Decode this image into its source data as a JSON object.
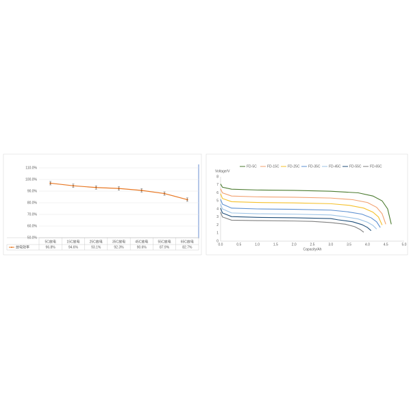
{
  "chart_data": [
    {
      "type": "line",
      "categories": [
        "5C放电",
        "15C放电",
        "25C放电",
        "35C放电",
        "45C放电",
        "55C放电",
        "65C放电"
      ],
      "series": [
        {
          "name": "放电效率",
          "color": "#e87722",
          "values": [
            96.8,
            94.6,
            93.1,
            92.3,
            90.6,
            87.9,
            82.7
          ],
          "value_labels": [
            "96.8%",
            "94.6%",
            "93.1%",
            "92.3%",
            "90.6%",
            "87.9%",
            "82.7%"
          ],
          "errors": [
            1.5,
            1.5,
            1.5,
            1.5,
            1.5,
            1.5,
            1.5
          ]
        }
      ],
      "ylim": [
        50,
        110
      ],
      "yticks": [
        {
          "value": 50,
          "label": "50.0%"
        },
        {
          "value": 60,
          "label": "60.0%"
        },
        {
          "value": 70,
          "label": "70.0%"
        },
        {
          "value": 80,
          "label": "80.0%"
        },
        {
          "value": 90,
          "label": "90.0%"
        },
        {
          "value": 100,
          "label": "100.0%"
        },
        {
          "value": 110,
          "label": "110.0%"
        }
      ],
      "grid": true
    },
    {
      "type": "line",
      "x_label": "Capacity/Ah",
      "y_label": "Voltage/V",
      "series": [
        {
          "name": "FD-5C",
          "color": "#4a7a2e",
          "x": [
            0,
            0.05,
            0.3,
            1,
            2,
            3,
            3.75,
            4.15,
            4.4,
            4.55,
            4.65
          ],
          "values": [
            7.1,
            6.7,
            6.45,
            6.35,
            6.3,
            6.2,
            6.0,
            5.6,
            5.0,
            4.0,
            2.1
          ]
        },
        {
          "name": "FD-15C",
          "color": "#f2a06e",
          "x": [
            0,
            0.05,
            0.3,
            1,
            2,
            3,
            3.6,
            4.0,
            4.25,
            4.4,
            4.5
          ],
          "values": [
            6.5,
            6.0,
            5.6,
            5.5,
            5.45,
            5.35,
            5.15,
            4.8,
            4.2,
            3.4,
            2.1
          ]
        },
        {
          "name": "FD-25C",
          "color": "#f5c02a",
          "x": [
            0,
            0.05,
            0.3,
            1,
            2,
            3,
            3.5,
            3.9,
            4.15,
            4.3,
            4.4
          ],
          "values": [
            5.9,
            5.3,
            4.9,
            4.8,
            4.75,
            4.65,
            4.45,
            4.1,
            3.6,
            3.0,
            2.0
          ]
        },
        {
          "name": "FD-35C",
          "color": "#5b8fd0",
          "x": [
            0,
            0.05,
            0.3,
            1,
            2,
            3,
            3.45,
            3.85,
            4.1,
            4.25,
            4.35
          ],
          "values": [
            5.2,
            4.6,
            4.1,
            4.0,
            3.95,
            3.85,
            3.65,
            3.35,
            2.9,
            2.4,
            1.7
          ]
        },
        {
          "name": "FD-45C",
          "color": "#9cc3e6",
          "x": [
            0,
            0.05,
            0.3,
            1,
            2,
            3,
            3.35,
            3.75,
            4.0,
            4.15,
            4.25
          ],
          "values": [
            4.6,
            4.0,
            3.5,
            3.4,
            3.35,
            3.25,
            3.05,
            2.75,
            2.35,
            1.95,
            1.5
          ]
        },
        {
          "name": "FD-55C",
          "color": "#1f4e79",
          "x": [
            0,
            0.05,
            0.3,
            1,
            2,
            3,
            3.2,
            3.6,
            3.85,
            4.0,
            4.1
          ],
          "values": [
            4.1,
            3.5,
            3.05,
            2.95,
            2.9,
            2.8,
            2.65,
            2.4,
            2.05,
            1.7,
            1.3
          ]
        },
        {
          "name": "FD-65C",
          "color": "#7f7f7f",
          "x": [
            0,
            0.05,
            0.3,
            1,
            2,
            2.5,
            3.0,
            3.4,
            3.65,
            3.8,
            3.9
          ],
          "values": [
            3.6,
            3.0,
            2.6,
            2.55,
            2.5,
            2.45,
            2.3,
            2.1,
            1.8,
            1.45,
            1.1
          ]
        }
      ],
      "xlim": [
        0,
        5
      ],
      "xticks": [
        {
          "value": 0,
          "label": "0.0"
        },
        0.5,
        {
          "value": 1,
          "label": "1.0"
        },
        1.5,
        {
          "value": 2,
          "label": "2.0"
        },
        2.5,
        {
          "value": 3,
          "label": "3.0"
        },
        3.5,
        {
          "value": 4,
          "label": "4.0"
        },
        4.5,
        {
          "value": 5,
          "label": "5.0"
        }
      ],
      "ylim": [
        0,
        8
      ],
      "yticks": [
        0,
        1,
        2,
        3,
        4,
        5,
        6,
        7,
        8
      ],
      "grid": false
    }
  ]
}
